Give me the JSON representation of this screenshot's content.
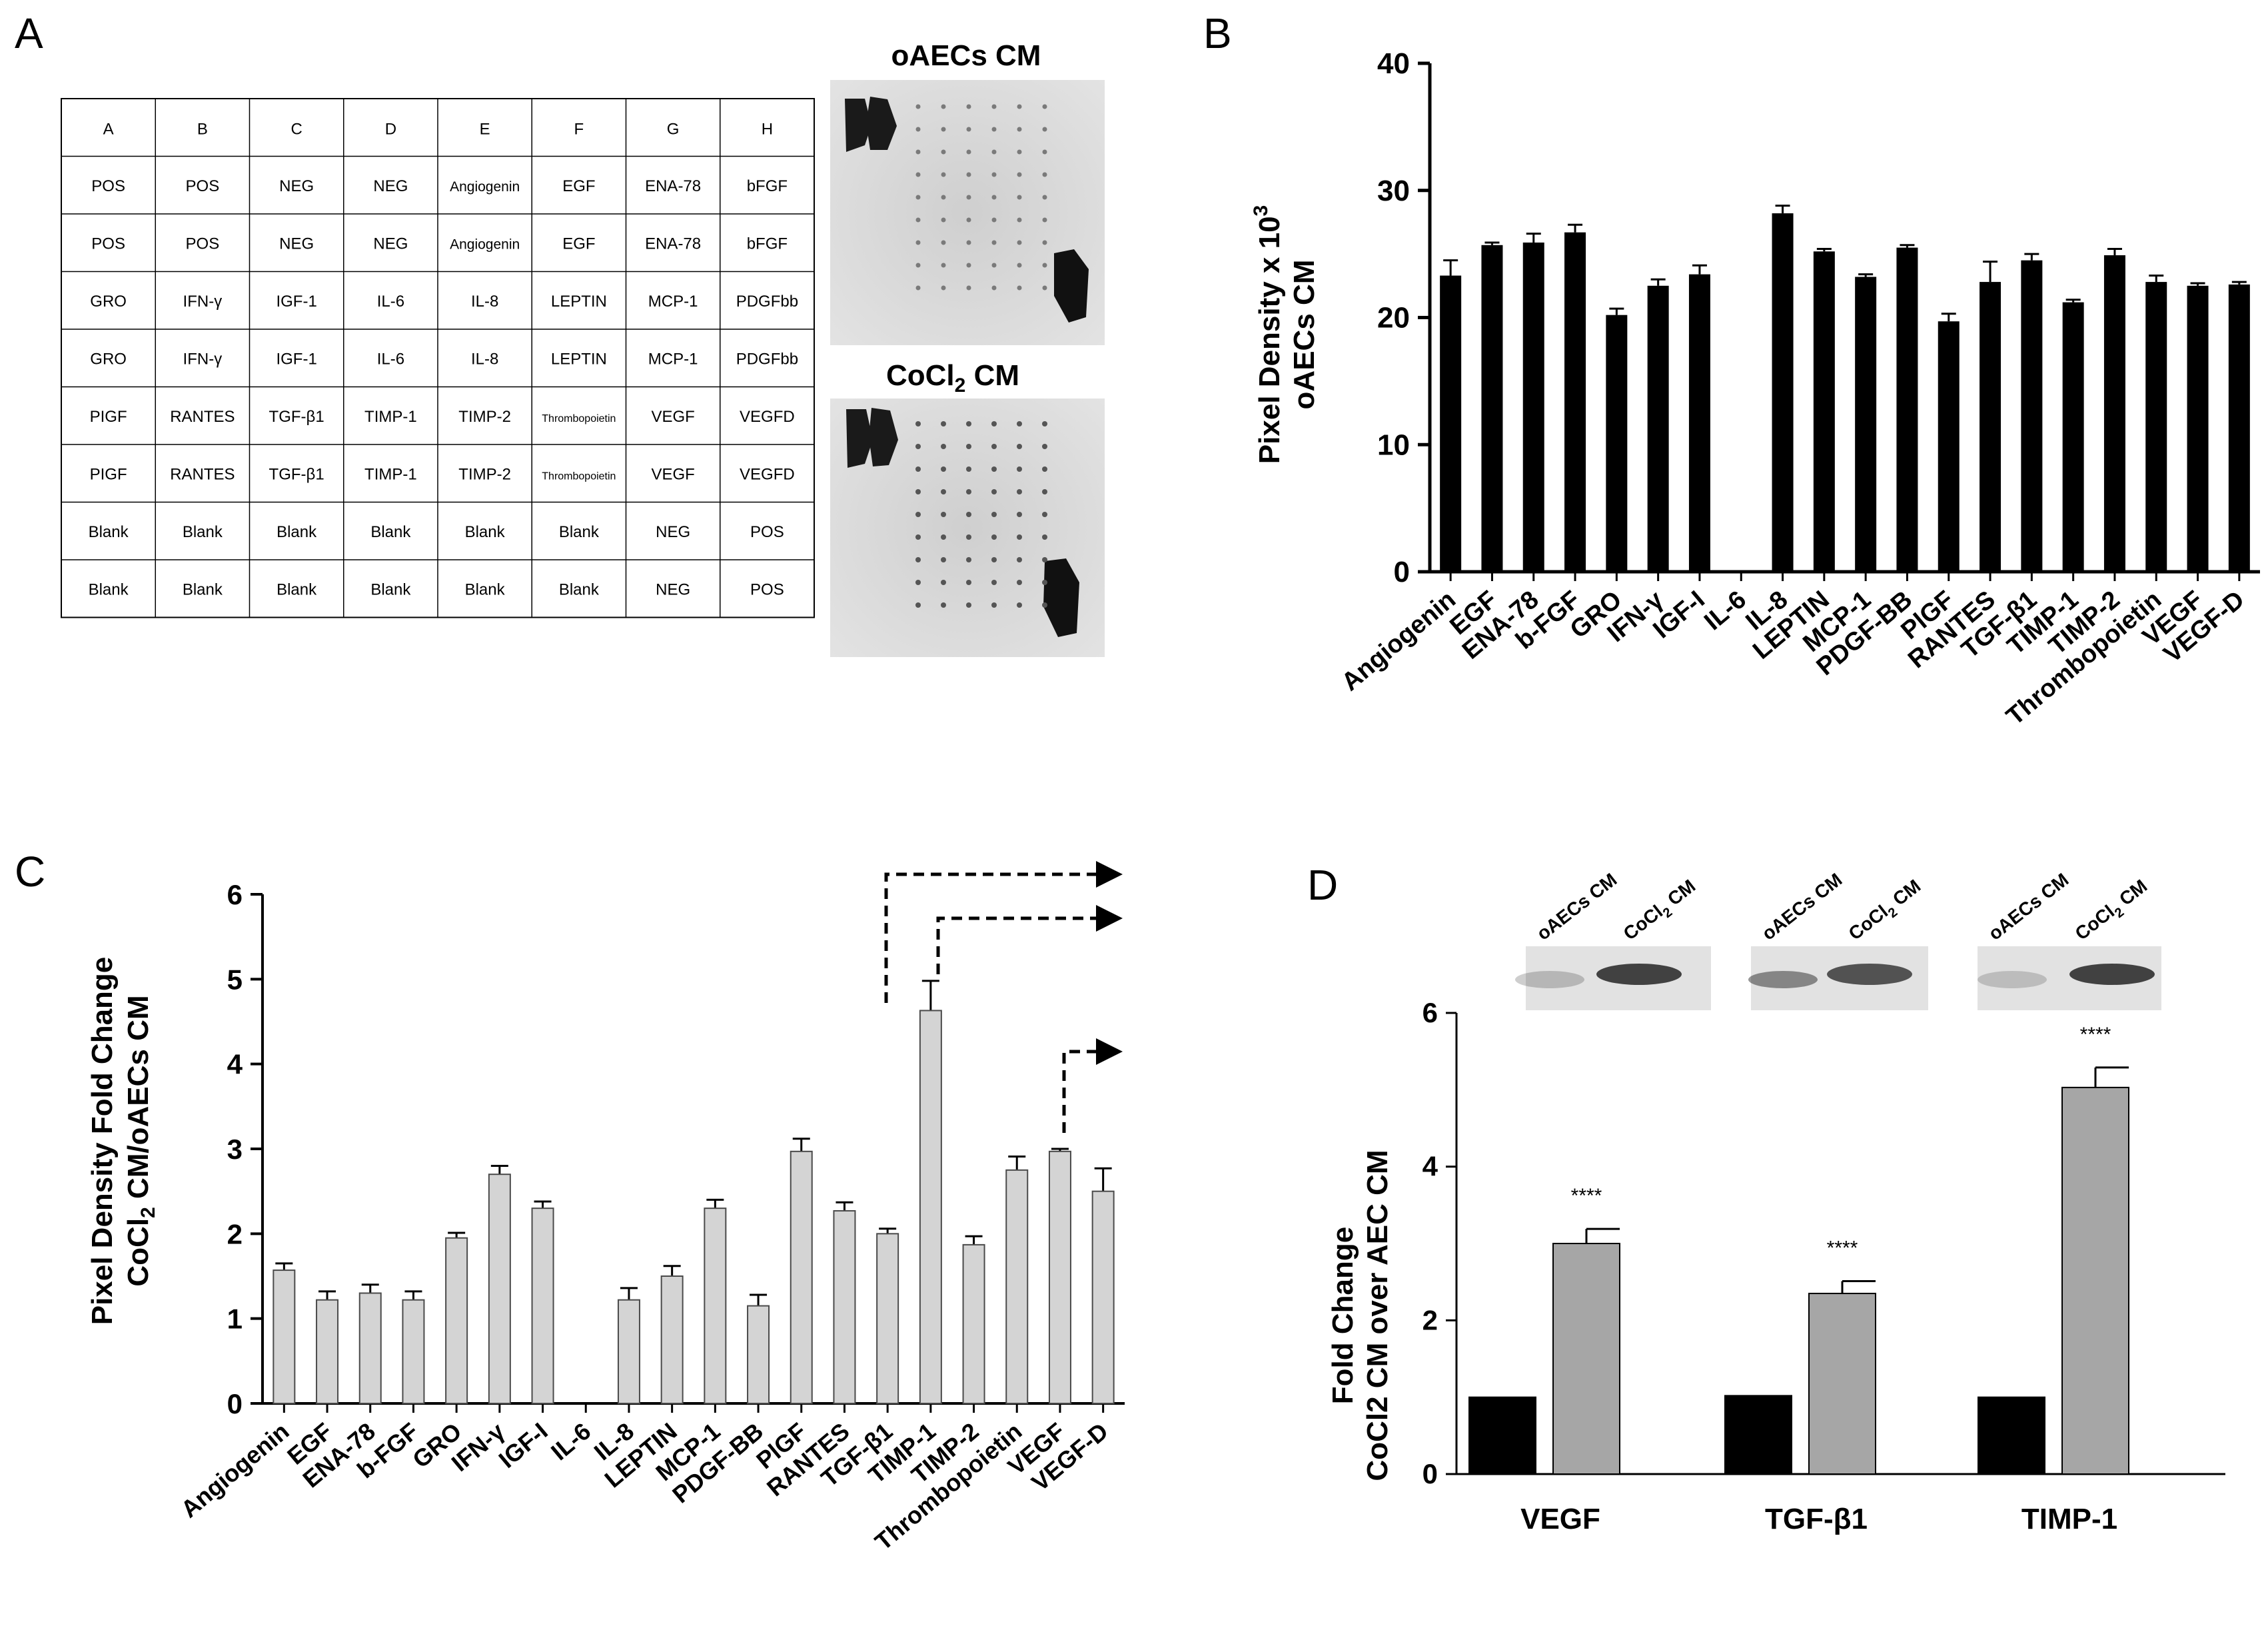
{
  "panel_letters": {
    "a": "A",
    "b": "B",
    "c": "C",
    "d": "D"
  },
  "array_table": {
    "headers": [
      "A",
      "B",
      "C",
      "D",
      "E",
      "F",
      "G",
      "H"
    ],
    "rows": [
      [
        "POS",
        "POS",
        "NEG",
        "NEG",
        "Angiogenin",
        "EGF",
        "ENA-78",
        "bFGF"
      ],
      [
        "POS",
        "POS",
        "NEG",
        "NEG",
        "Angiogenin",
        "EGF",
        "ENA-78",
        "bFGF"
      ],
      [
        "GRO",
        "IFN-γ",
        "IGF-1",
        "IL-6",
        "IL-8",
        "LEPTIN",
        "MCP-1",
        "PDGFbb"
      ],
      [
        "GRO",
        "IFN-γ",
        "IGF-1",
        "IL-6",
        "IL-8",
        "LEPTIN",
        "MCP-1",
        "PDGFbb"
      ],
      [
        "PIGF",
        "RANTES",
        "TGF-β1",
        "TIMP-1",
        "TIMP-2",
        "Thrombopoietin",
        "VEGF",
        "VEGFD"
      ],
      [
        "PIGF",
        "RANTES",
        "TGF-β1",
        "TIMP-1",
        "TIMP-2",
        "Thrombopoietin",
        "VEGF",
        "VEGFD"
      ],
      [
        "Blank",
        "Blank",
        "Blank",
        "Blank",
        "Blank",
        "Blank",
        "NEG",
        "POS"
      ],
      [
        "Blank",
        "Blank",
        "Blank",
        "Blank",
        "Blank",
        "Blank",
        "NEG",
        "POS"
      ]
    ]
  },
  "blots_a": {
    "top_title": "oAECs CM",
    "bottom_title_main": "CoCl",
    "bottom_title_sub": "2",
    "bottom_title_end": " CM"
  },
  "blots_d": {
    "lane1": "oAECs CM",
    "lane2_main": "CoCl",
    "lane2_sub": "2",
    "lane2_end": " CM"
  },
  "colors": {
    "black_bar": "#000000",
    "light_gray_bar": "#d4d4d4",
    "mid_gray_bar": "#a6a6a6",
    "membrane": "#d9d9d9"
  },
  "chart_data": [
    {
      "panel": "B",
      "type": "bar",
      "ylabel_line1": "Pixel Density x 10",
      "ylabel_sup": "3",
      "ylabel_line2": "oAECs CM",
      "ylim": [
        0,
        40
      ],
      "yticks": [
        0,
        10,
        20,
        30,
        40
      ],
      "categories": [
        "Angiogenin",
        "EGF",
        "ENA-78",
        "b-FGF",
        "GRO",
        "IFN-γ",
        "IGF-I",
        "IL-6",
        "IL-8",
        "LEPTIN",
        "MCP-1",
        "PDGF-BB",
        "PlGF",
        "RANTES",
        "TGF-β1",
        "TIMP-1",
        "TIMP-2",
        "Thrombopoietin",
        "VEGF",
        "VEGF-D"
      ],
      "values": [
        23.3,
        25.7,
        25.9,
        26.7,
        20.2,
        22.5,
        23.4,
        0,
        28.2,
        25.2,
        23.2,
        25.5,
        19.7,
        22.8,
        24.5,
        21.2,
        24.9,
        22.8,
        22.5,
        22.6
      ],
      "errors": [
        1.2,
        0.2,
        0.7,
        0.6,
        0.5,
        0.5,
        0.7,
        0,
        0.6,
        0.2,
        0.2,
        0.2,
        0.6,
        1.6,
        0.5,
        0.2,
        0.5,
        0.5,
        0.2,
        0.2
      ]
    },
    {
      "panel": "C",
      "type": "bar",
      "ylabel_line1": "Pixel Density Fold Change",
      "ylabel_line2_main": "CoCl",
      "ylabel_line2_sub": "2",
      "ylabel_line2_end": " CM/oAECs CM",
      "ylim": [
        0,
        6
      ],
      "yticks": [
        0,
        1,
        2,
        3,
        4,
        5,
        6
      ],
      "categories": [
        "Angiogenin",
        "EGF",
        "ENA-78",
        "b-FGF",
        "GRO",
        "IFN-γ",
        "IGF-I",
        "IL-6",
        "IL-8",
        "LEPTIN",
        "MCP-1",
        "PDGF-BB",
        "PlGF",
        "RANTES",
        "TGF-β1",
        "TIMP-1",
        "TIMP-2",
        "Thrombopoietin",
        "VEGF",
        "VEGF-D"
      ],
      "values": [
        1.57,
        1.22,
        1.3,
        1.22,
        1.95,
        2.7,
        2.3,
        0,
        1.22,
        1.5,
        2.3,
        1.15,
        2.97,
        2.27,
        2.0,
        4.63,
        1.87,
        2.75,
        2.97,
        2.5
      ],
      "errors": [
        0.08,
        0.1,
        0.1,
        0.1,
        0.06,
        0.1,
        0.08,
        0,
        0.14,
        0.12,
        0.1,
        0.13,
        0.15,
        0.1,
        0.06,
        0.35,
        0.1,
        0.16,
        0.03,
        0.27
      ],
      "highlighted": [
        "TGF-β1",
        "TIMP-1",
        "VEGF"
      ]
    },
    {
      "panel": "D",
      "type": "bar",
      "ylabel_line1": "Fold Change",
      "ylabel_line2": "CoCl2 CM over AEC CM",
      "ylim": [
        0,
        6
      ],
      "yticks": [
        0,
        2,
        4,
        6
      ],
      "categories": [
        "VEGF",
        "TGF-β1",
        "TIMP-1"
      ],
      "series": [
        {
          "name": "oAECs CM",
          "values": [
            1.0,
            1.02,
            1.0
          ],
          "errors": [
            0,
            0,
            0
          ]
        },
        {
          "name": "CoCl2 CM",
          "values": [
            3.0,
            2.35,
            5.03
          ],
          "errors": [
            0.19,
            0.16,
            0.26
          ]
        }
      ],
      "significance": [
        "****",
        "****",
        "****"
      ]
    }
  ]
}
